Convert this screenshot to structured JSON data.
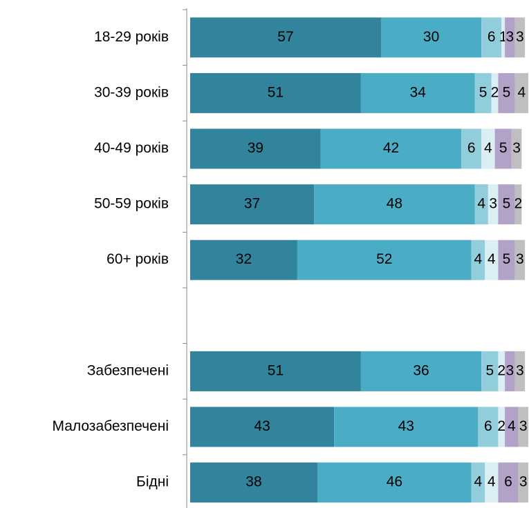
{
  "chart_data": {
    "type": "bar",
    "orientation": "horizontal",
    "stacked": true,
    "categories": [
      "18-29 років",
      "30-39 років",
      "40-49 років",
      "50-59 років",
      "60+ років",
      null,
      "Забезпечені",
      "Малозабезпечені",
      "Бідні"
    ],
    "series": [
      {
        "color": "#31849b",
        "values": [
          57,
          51,
          39,
          37,
          32,
          null,
          51,
          43,
          38
        ]
      },
      {
        "color": "#4bacc6",
        "values": [
          30,
          34,
          42,
          48,
          52,
          null,
          36,
          43,
          46
        ]
      },
      {
        "color": "#92cddc",
        "values": [
          6,
          5,
          6,
          4,
          4,
          null,
          5,
          6,
          4
        ]
      },
      {
        "color": "#daeef3",
        "values": [
          1,
          2,
          4,
          3,
          4,
          null,
          2,
          2,
          4
        ]
      },
      {
        "color": "#b2a2c7",
        "values": [
          3,
          5,
          5,
          5,
          5,
          null,
          3,
          4,
          6
        ]
      },
      {
        "color": "#bfbfbf",
        "values": [
          3,
          4,
          3,
          2,
          3,
          null,
          3,
          3,
          3
        ]
      }
    ],
    "xlim": [
      0,
      101
    ]
  }
}
